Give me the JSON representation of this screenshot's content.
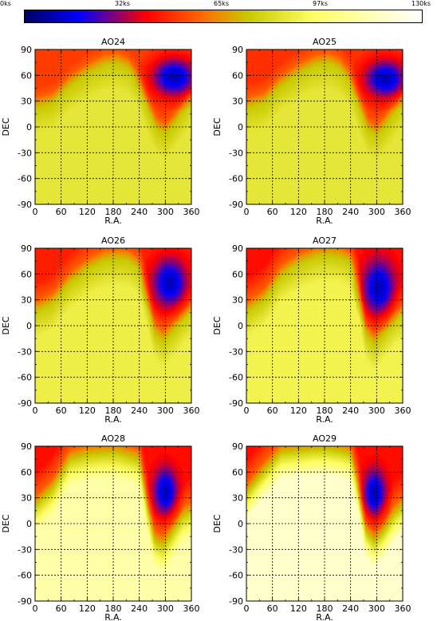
{
  "chart_data": {
    "type": "heatmap",
    "colorbar": {
      "tick_labels": [
        "0ks",
        "32ks",
        "65ks",
        "97ks",
        "130ks"
      ],
      "range": [
        0,
        130
      ],
      "stops": [
        {
          "v": 0,
          "color": "#000060"
        },
        {
          "v": 18,
          "color": "#0000ff"
        },
        {
          "v": 40,
          "color": "#ff0000"
        },
        {
          "v": 58,
          "color": "#ff6a00"
        },
        {
          "v": 73,
          "color": "#c8c800"
        },
        {
          "v": 95,
          "color": "#ffff66"
        },
        {
          "v": 130,
          "color": "#ffffff"
        }
      ]
    },
    "xlabel": "R.A.",
    "ylabel": "DEC",
    "xlim": [
      0,
      360
    ],
    "ylim": [
      -90,
      90
    ],
    "xticks": [
      "0",
      "60",
      "120",
      "180",
      "240",
      "300",
      "360"
    ],
    "yticks": [
      "-90",
      "-60",
      "-30",
      "0",
      "30",
      "60",
      "90"
    ],
    "grid": true,
    "panels": [
      {
        "title": "AO24",
        "ridge": [
          [
            0,
            22
          ],
          [
            40,
            28
          ],
          [
            80,
            48
          ],
          [
            120,
            62
          ],
          [
            160,
            72
          ],
          [
            190,
            74
          ],
          [
            215,
            68
          ],
          [
            240,
            50
          ],
          [
            262,
            18
          ],
          [
            280,
            -2
          ],
          [
            300,
            -8
          ],
          [
            320,
            3
          ],
          [
            340,
            18
          ],
          [
            360,
            32
          ]
        ],
        "blue_center": [
          320,
          58
        ],
        "blue_radius": [
          60,
          26
        ],
        "upper_red": 60,
        "lower_yellow": 85
      },
      {
        "title": "AO25",
        "ridge": [
          [
            0,
            22
          ],
          [
            40,
            28
          ],
          [
            80,
            48
          ],
          [
            120,
            62
          ],
          [
            160,
            72
          ],
          [
            190,
            74
          ],
          [
            215,
            68
          ],
          [
            240,
            52
          ],
          [
            262,
            20
          ],
          [
            280,
            -3
          ],
          [
            300,
            -10
          ],
          [
            320,
            2
          ],
          [
            340,
            16
          ],
          [
            360,
            30
          ]
        ],
        "blue_center": [
          320,
          56
        ],
        "blue_radius": [
          55,
          25
        ],
        "upper_red": 58,
        "lower_yellow": 85
      },
      {
        "title": "AO26",
        "ridge": [
          [
            0,
            16
          ],
          [
            40,
            26
          ],
          [
            80,
            50
          ],
          [
            120,
            66
          ],
          [
            160,
            76
          ],
          [
            190,
            78
          ],
          [
            215,
            76
          ],
          [
            240,
            66
          ],
          [
            258,
            30
          ],
          [
            275,
            -8
          ],
          [
            295,
            -18
          ],
          [
            315,
            -8
          ],
          [
            340,
            8
          ],
          [
            360,
            18
          ]
        ],
        "blue_center": [
          310,
          50
        ],
        "blue_radius": [
          45,
          32
        ],
        "upper_red": 55,
        "lower_yellow": 88
      },
      {
        "title": "AO27",
        "ridge": [
          [
            0,
            16
          ],
          [
            40,
            30
          ],
          [
            80,
            58
          ],
          [
            120,
            72
          ],
          [
            160,
            80
          ],
          [
            190,
            82
          ],
          [
            215,
            80
          ],
          [
            240,
            74
          ],
          [
            258,
            40
          ],
          [
            275,
            -10
          ],
          [
            295,
            -22
          ],
          [
            315,
            -10
          ],
          [
            340,
            6
          ],
          [
            360,
            14
          ]
        ],
        "blue_center": [
          305,
          45
        ],
        "blue_radius": [
          40,
          35
        ],
        "upper_red": 50,
        "lower_yellow": 90
      },
      {
        "title": "AO28",
        "ridge": [
          [
            0,
            20
          ],
          [
            40,
            40
          ],
          [
            80,
            74
          ],
          [
            120,
            80
          ],
          [
            160,
            82
          ],
          [
            190,
            82
          ],
          [
            215,
            78
          ],
          [
            240,
            74
          ],
          [
            258,
            20
          ],
          [
            275,
            -20
          ],
          [
            295,
            -26
          ],
          [
            315,
            -12
          ],
          [
            340,
            8
          ],
          [
            360,
            14
          ]
        ],
        "blue_center": [
          300,
          38
        ],
        "blue_radius": [
          30,
          30
        ],
        "upper_red": 40,
        "lower_yellow": 110
      },
      {
        "title": "AO29",
        "ridge": [
          [
            0,
            35
          ],
          [
            40,
            60
          ],
          [
            80,
            82
          ],
          [
            120,
            84
          ],
          [
            160,
            86
          ],
          [
            190,
            86
          ],
          [
            215,
            84
          ],
          [
            240,
            80
          ],
          [
            258,
            40
          ],
          [
            275,
            -10
          ],
          [
            295,
            -22
          ],
          [
            315,
            -10
          ],
          [
            340,
            10
          ],
          [
            360,
            20
          ]
        ],
        "blue_center": [
          295,
          36
        ],
        "blue_radius": [
          28,
          30
        ],
        "upper_red": 42,
        "lower_yellow": 118
      }
    ]
  }
}
